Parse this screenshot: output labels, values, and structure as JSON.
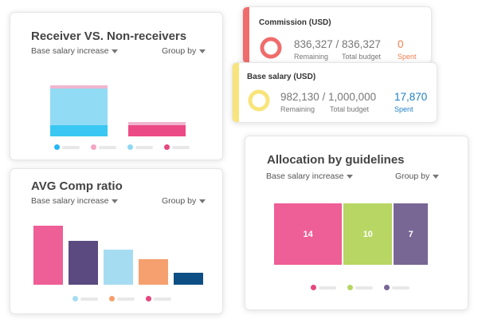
{
  "receiver_card": {
    "title": "Receiver VS. Non-receivers",
    "dropdown": "Base salary increase",
    "group_by": "Group by",
    "legend_colors": [
      "#29b6f6",
      "#f4a6c4",
      "#8fd8f2",
      "#e6477e"
    ]
  },
  "avg_comp_card": {
    "title": "AVG Comp ratio",
    "dropdown": "Base salary increase",
    "group_by": "Group by",
    "legend_colors": [
      "#a6dcf2",
      "#f5a06e",
      "#e6477e"
    ]
  },
  "commission_card": {
    "title": "Commission (USD)",
    "figures": "836,327 / 836,327",
    "remaining_label": "Remaining",
    "total_label": "Total budget",
    "spent_value": "0",
    "spent_label": "Spent",
    "accent": "#f06c6c",
    "spent_ratio": 0
  },
  "base_salary_card": {
    "title": "Base salary (USD)",
    "figures": "982,130 / 1,000,000",
    "remaining_label": "Remaining",
    "total_label": "Total budget",
    "spent_value": "17,870",
    "spent_label": "Spent",
    "accent": "#f8e47a",
    "spent_ratio": 0.01787
  },
  "allocation_card": {
    "title": "Allocation by guidelines",
    "dropdown": "Base salary increase",
    "group_by": "Group by",
    "blocks": [
      {
        "value": "14",
        "color": "#ee5e97"
      },
      {
        "value": "10",
        "color": "#b7d663"
      },
      {
        "value": "7",
        "color": "#786694"
      }
    ],
    "legend_colors": [
      "#e6477e",
      "#b7d663",
      "#786694"
    ]
  },
  "chart_data": [
    {
      "type": "bar",
      "stacked": true,
      "categories": [
        "",
        ""
      ],
      "series": [
        {
          "color": "#3ac8f2",
          "values": [
            17,
            17
          ]
        },
        {
          "color": "#92dbf4",
          "values": [
            58,
            0
          ]
        },
        {
          "color": "#f0b6cf",
          "values": [
            5,
            5
          ]
        }
      ],
      "second_bar_main_color": "#ec4a86"
    },
    {
      "type": "bar",
      "categories": [
        "",
        "",
        "",
        "",
        ""
      ],
      "values": [
        74,
        55,
        44,
        32,
        15
      ],
      "colors": [
        "#ee5e97",
        "#5a4a80",
        "#a6dcf2",
        "#f5a06e",
        "#0d4f84"
      ]
    },
    {
      "type": "bar",
      "categories": [
        "",
        "",
        ""
      ],
      "values": [
        14,
        10,
        7
      ],
      "colors": [
        "#ee5e97",
        "#b7d663",
        "#786694"
      ]
    }
  ]
}
